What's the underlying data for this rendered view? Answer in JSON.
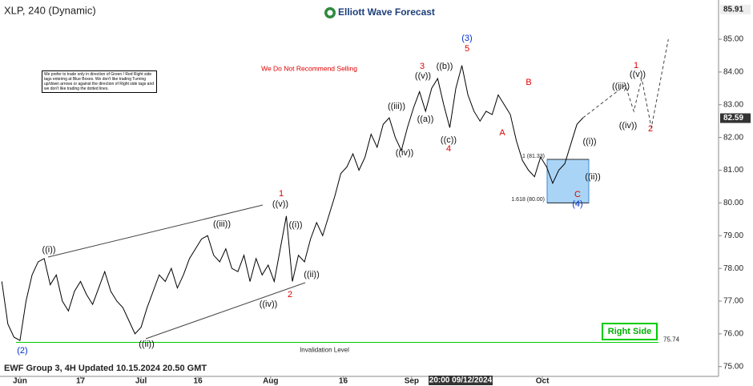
{
  "chart_data": {
    "type": "line",
    "title": "XLP, 240 (Dynamic)",
    "brand": "Elliott Wave Forecast",
    "footer": "EWF Group 3, 4H Updated 10.15.2024 20.50 GMT",
    "notice": "We Do Not Recommend Selling",
    "disclaimer": "We prefer to trade only in direction of Green / Red Right side tags entering at Blue Boxes. We don't like trading Turning up/down arrows or against the direction of Right side tags and we don't like trading the dotted lines.",
    "right_side_tag": "Right Side",
    "crosshair_label": "20:00 09/12/2024",
    "color": "#000000",
    "x": [
      -3,
      -2,
      -1,
      0,
      1,
      2,
      3,
      4,
      5,
      6,
      7,
      8,
      9,
      10,
      11,
      12,
      13,
      14,
      15,
      16,
      17,
      18,
      19,
      20,
      21,
      22,
      23,
      24,
      25,
      26,
      27,
      28,
      29,
      30,
      31,
      32,
      33,
      34,
      35,
      36,
      37,
      38,
      39,
      40,
      41,
      42,
      43,
      44,
      45,
      46,
      47,
      48,
      49,
      50,
      51,
      52,
      53,
      54,
      55,
      56,
      57,
      58,
      59,
      60,
      61,
      62,
      63,
      64,
      65,
      66,
      67,
      68,
      69,
      70,
      71,
      72,
      73,
      74,
      75,
      76,
      77,
      78,
      79,
      80,
      81,
      82,
      83,
      84,
      85,
      86,
      87,
      88,
      89,
      90,
      91,
      92,
      93
    ],
    "values": [
      77.6,
      76.3,
      75.9,
      75.8,
      77.0,
      77.8,
      78.2,
      78.3,
      77.5,
      77.8,
      77.0,
      76.7,
      77.3,
      77.6,
      77.2,
      76.9,
      77.4,
      77.9,
      77.3,
      77.0,
      76.8,
      76.4,
      76.0,
      76.2,
      76.8,
      77.3,
      77.8,
      77.6,
      78.0,
      77.4,
      77.8,
      78.3,
      78.6,
      78.9,
      79.0,
      78.4,
      78.2,
      78.6,
      78.0,
      77.9,
      78.4,
      77.6,
      78.3,
      77.8,
      78.1,
      77.6,
      78.6,
      79.6,
      77.6,
      78.4,
      78.2,
      78.9,
      79.4,
      79.0,
      79.6,
      80.2,
      80.9,
      81.1,
      81.5,
      81.0,
      81.4,
      82.1,
      81.7,
      82.4,
      82.6,
      82.0,
      81.6,
      82.3,
      82.9,
      83.4,
      82.8,
      83.5,
      83.8,
      83.0,
      82.3,
      83.5,
      84.2,
      83.3,
      82.8,
      82.5,
      82.8,
      82.7,
      83.3,
      83.0,
      82.7,
      81.9,
      81.3,
      81.0,
      80.8,
      81.4,
      81.1,
      80.6,
      81.0,
      81.2,
      81.8,
      82.4,
      82.6
    ],
    "projection": {
      "x": [
        93,
        100.0,
        101.4,
        102.7,
        104.3,
        107.1
      ],
      "values": [
        82.6,
        83.6,
        82.8,
        83.8,
        82.3,
        85.0
      ]
    },
    "xlim": [
      -3.3,
      115.4
    ],
    "ylim": [
      74.7,
      86.2
    ],
    "xticks": [
      {
        "value": 0,
        "label": "Jun"
      },
      {
        "value": 10,
        "label": "17"
      },
      {
        "value": 20,
        "label": "Jul"
      },
      {
        "value": 29.4,
        "label": "16"
      },
      {
        "value": 41.4,
        "label": "Aug"
      },
      {
        "value": 53.4,
        "label": "16"
      },
      {
        "value": 64.7,
        "label": "Sep"
      },
      {
        "value": 86.3,
        "label": "Oct"
      }
    ],
    "yticks": [
      {
        "value": 75,
        "label": "75.00"
      },
      {
        "value": 76,
        "label": "76.00"
      },
      {
        "value": 77,
        "label": "77.00"
      },
      {
        "value": 78,
        "label": "78.00"
      },
      {
        "value": 79,
        "label": "79.00"
      },
      {
        "value": 80,
        "label": "80.00"
      },
      {
        "value": 81,
        "label": "81.00"
      },
      {
        "value": 82,
        "label": "82.00"
      },
      {
        "value": 83,
        "label": "83.00"
      },
      {
        "value": 84,
        "label": "84.00"
      },
      {
        "value": 85,
        "label": "85.00"
      }
    ],
    "high_price": 85.91,
    "last_price": 82.59,
    "invalidation": {
      "value": 75.74,
      "text": "Invalidation Level",
      "color": "#00cc00"
    },
    "fib_levels": [
      {
        "value": 81.33,
        "label": "1 (81.33)"
      },
      {
        "value": 80.0,
        "label": "1.618 (80.00)"
      }
    ],
    "annotations": [
      "(2)",
      "((i))",
      "((ii))",
      "((iii))",
      "((iv))",
      "((v))",
      "1",
      "((i))",
      "((ii))",
      "2",
      "((iii))",
      "((iv))",
      "((v))",
      "3",
      "((a))",
      "((b))",
      "((c))",
      "4",
      "5",
      "(3)",
      "A",
      "B",
      "C",
      "(4)",
      "((i))",
      "((ii))",
      "((iii))",
      "((iv))",
      "((v))",
      "1",
      "2"
    ]
  }
}
